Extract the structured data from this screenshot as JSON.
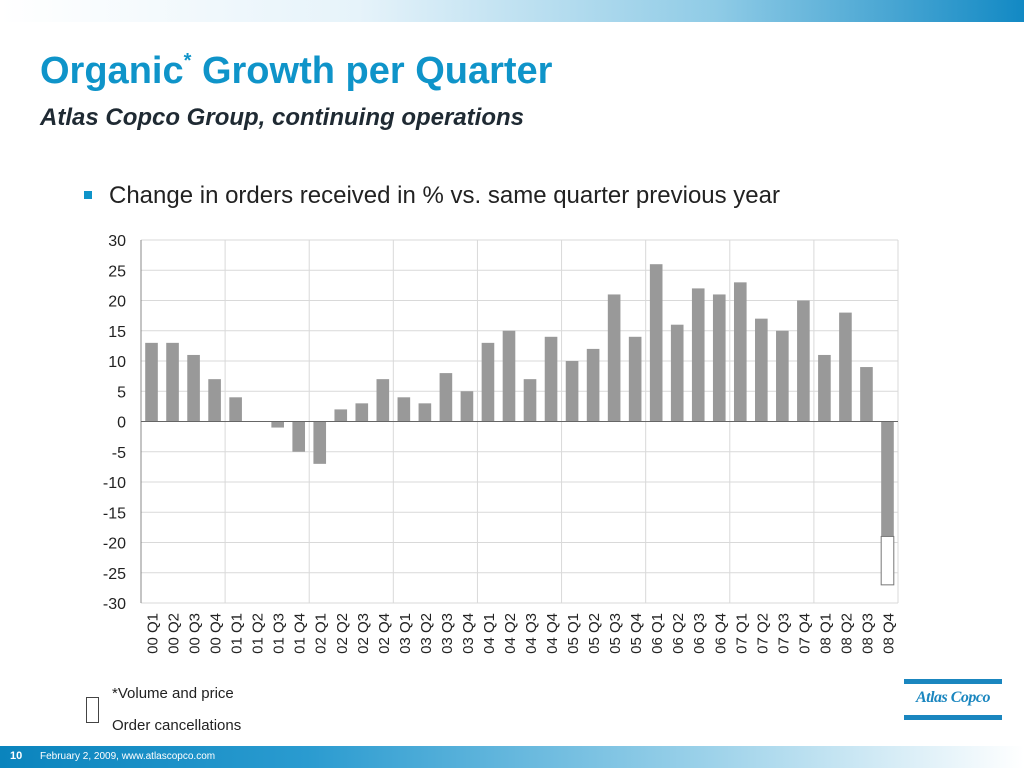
{
  "slide": {
    "title": "Organic",
    "title_mark": "*",
    "title_rest": " Growth per Quarter",
    "subtitle": "Atlas Copco Group, continuing operations",
    "bullet": "Change in orders received in % vs. same quarter previous year",
    "footnote_1": "*Volume and price",
    "footnote_2": "Order cancellations",
    "logo_text": "Atlas Copco",
    "page_number": "10",
    "footer": "February 2, 2009, www.atlascopco.com"
  },
  "colors": {
    "accent": "#0f94c9",
    "bar": "#999999",
    "grid": "#d9d9d9"
  },
  "chart_data": {
    "type": "bar",
    "title": "",
    "xlabel": "",
    "ylabel": "",
    "ylim": [
      -30,
      30
    ],
    "yticks": [
      30,
      25,
      20,
      15,
      10,
      5,
      0,
      -5,
      -10,
      -15,
      -20,
      -25,
      -30
    ],
    "grid": true,
    "categories": [
      "00 Q1",
      "00 Q2",
      "00 Q3",
      "00 Q4",
      "01 Q1",
      "01 Q2",
      "01 Q3",
      "01 Q4",
      "02 Q1",
      "02 Q2",
      "02 Q3",
      "02 Q4",
      "03 Q1",
      "03 Q2",
      "03 Q3",
      "03 Q4",
      "04 Q1",
      "04 Q2",
      "04 Q3",
      "04 Q4",
      "05 Q1",
      "05 Q2",
      "05 Q3",
      "05 Q4",
      "06 Q1",
      "06 Q2",
      "06 Q3",
      "06 Q4",
      "07 Q1",
      "07 Q2",
      "07 Q3",
      "07 Q4",
      "08 Q1",
      "08 Q2",
      "08 Q3",
      "08 Q4"
    ],
    "values": [
      13,
      13,
      11,
      7,
      4,
      0,
      -1,
      -5,
      -7,
      2,
      3,
      7,
      4,
      3,
      8,
      5,
      13,
      15,
      7,
      14,
      10,
      12,
      21,
      14,
      26,
      16,
      22,
      21,
      23,
      17,
      15,
      20,
      11,
      18,
      9,
      -19
    ],
    "order_cancellations": {
      "category": "08 Q4",
      "from": -19,
      "to": -27
    }
  }
}
